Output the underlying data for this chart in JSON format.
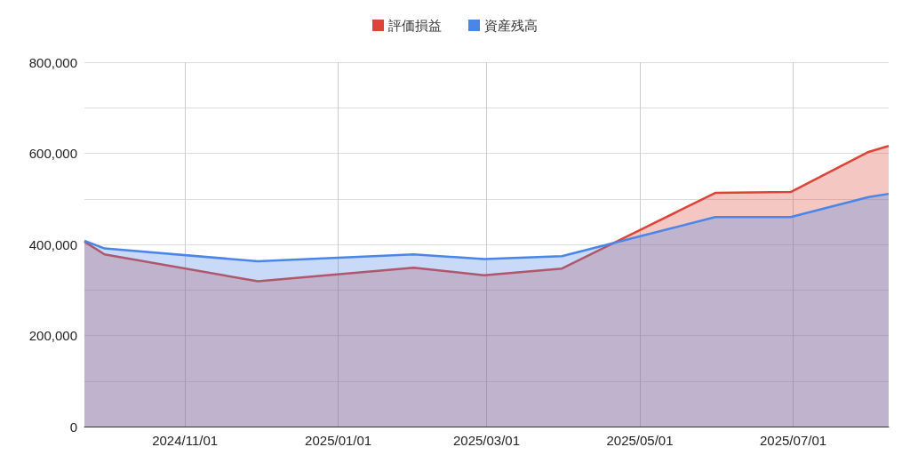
{
  "chart_data": {
    "type": "area",
    "x": [
      "2024-09-22",
      "2024-09-30",
      "2024-11-30",
      "2025-01-31",
      "2025-02-28",
      "2025-03-31",
      "2025-05-31",
      "2025-06-30",
      "2025-07-31",
      "2025-08-08"
    ],
    "series": [
      {
        "name": "評価損益",
        "color": "#db4437",
        "values": [
          406000,
          378000,
          319000,
          349000,
          332000,
          347000,
          513000,
          515000,
          603000,
          616000
        ]
      },
      {
        "name": "資産残高",
        "color": "#4a86e8",
        "values": [
          408000,
          391000,
          363000,
          378000,
          368000,
          374000,
          460000,
          460000,
          504000,
          511000
        ]
      }
    ],
    "xlim": [
      "2024-09-22",
      "2025-08-08"
    ],
    "xticks": [
      {
        "value": "2024-11-01",
        "label": "2024/11/01"
      },
      {
        "value": "2025-01-01",
        "label": "2025/01/01"
      },
      {
        "value": "2025-03-01",
        "label": "2025/03/01"
      },
      {
        "value": "2025-05-01",
        "label": "2025/05/01"
      },
      {
        "value": "2025-07-01",
        "label": "2025/07/01"
      }
    ],
    "ylim": [
      0,
      800000
    ],
    "yticks": [
      {
        "value": 0,
        "label": "0"
      },
      {
        "value": 100000,
        "label": null
      },
      {
        "value": 200000,
        "label": "200,000"
      },
      {
        "value": 300000,
        "label": null
      },
      {
        "value": 400000,
        "label": "400,000"
      },
      {
        "value": 500000,
        "label": null
      },
      {
        "value": 600000,
        "label": "600,000"
      },
      {
        "value": 700000,
        "label": null
      },
      {
        "value": 800000,
        "label": "800,000"
      }
    ],
    "grid": true,
    "legend": "top",
    "marker": "none",
    "line_style": "solid"
  }
}
